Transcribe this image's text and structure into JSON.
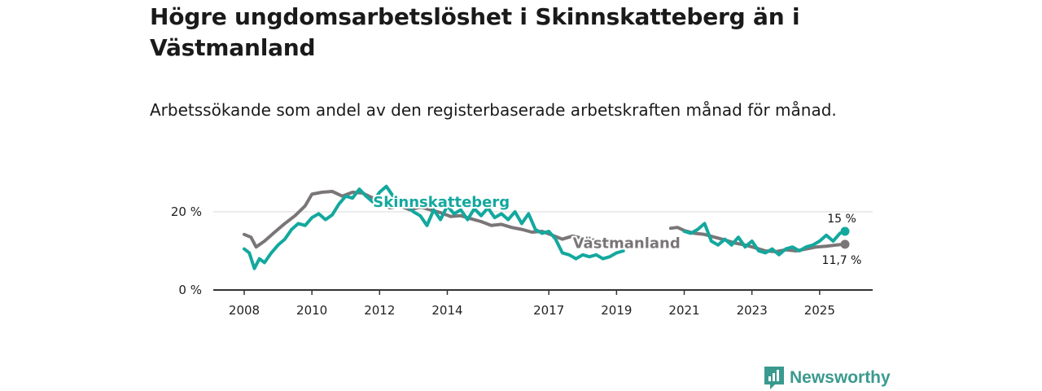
{
  "title": "Högre ungdomsarbetslöshet i Skinnskatteberg än i Västmanland",
  "subtitle": "Arbetssökande som andel av den registerbaserade arbetskraften månad för månad.",
  "brand": {
    "name": "Newsworthy"
  },
  "colors": {
    "skinnskatteberg": "#13a89e",
    "vastmanland": "#7a7678",
    "grid": "#d9d9d9",
    "axis": "#333333"
  },
  "chart_data": {
    "type": "line",
    "title": "Högre ungdomsarbetslöshet i Skinnskatteberg än i Västmanland",
    "xlabel": "",
    "ylabel": "",
    "ylim": [
      0,
      28
    ],
    "xlim": [
      2008.0,
      2025.75
    ],
    "y_ticks": [
      {
        "value": 0,
        "label": "0 %"
      },
      {
        "value": 20,
        "label": "20 %"
      }
    ],
    "x_ticks": [
      {
        "value": 2008,
        "label": "2008"
      },
      {
        "value": 2010,
        "label": "2010"
      },
      {
        "value": 2012,
        "label": "2012"
      },
      {
        "value": 2014,
        "label": "2014"
      },
      {
        "value": 2017,
        "label": "2017"
      },
      {
        "value": 2019,
        "label": "2019"
      },
      {
        "value": 2021,
        "label": "2021"
      },
      {
        "value": 2023,
        "label": "2023"
      },
      {
        "value": 2025,
        "label": "2025"
      }
    ],
    "series": [
      {
        "name": "Västmanland",
        "label": "Västmanland",
        "color": "#7a7678",
        "end_label": "11,7 %",
        "end_value": 11.7,
        "segments": [
          [
            [
              2008.0,
              14.2
            ],
            [
              2008.2,
              13.5
            ],
            [
              2008.35,
              11.0
            ],
            [
              2008.6,
              12.5
            ],
            [
              2008.9,
              14.8
            ],
            [
              2009.2,
              17.0
            ],
            [
              2009.5,
              19.0
            ],
            [
              2009.8,
              21.5
            ],
            [
              2010.0,
              24.5
            ],
            [
              2010.3,
              25.0
            ],
            [
              2010.6,
              25.2
            ],
            [
              2010.9,
              24.0
            ],
            [
              2011.2,
              25.0
            ],
            [
              2011.5,
              24.8
            ],
            [
              2011.8,
              23.5
            ],
            [
              2012.0,
              22.5
            ],
            [
              2012.3,
              21.0
            ],
            [
              2012.6,
              21.5
            ],
            [
              2012.9,
              20.5
            ],
            [
              2013.2,
              21.2
            ],
            [
              2013.5,
              20.5
            ],
            [
              2013.8,
              19.8
            ],
            [
              2014.1,
              18.8
            ],
            [
              2014.4,
              19.0
            ],
            [
              2014.7,
              18.2
            ],
            [
              2015.0,
              17.5
            ],
            [
              2015.3,
              16.5
            ],
            [
              2015.6,
              16.8
            ],
            [
              2015.9,
              16.0
            ],
            [
              2016.2,
              15.5
            ],
            [
              2016.5,
              14.8
            ],
            [
              2016.8,
              15.0
            ],
            [
              2017.1,
              14.0
            ],
            [
              2017.4,
              13.0
            ],
            [
              2017.7,
              13.8
            ],
            [
              2018.0,
              13.2
            ],
            [
              2018.3,
              12.8
            ],
            [
              2018.6,
              12.5
            ],
            [
              2018.9,
              11.8
            ],
            [
              2019.2,
              11.2
            ]
          ],
          [
            [
              2020.6,
              15.8
            ],
            [
              2020.8,
              16.0
            ],
            [
              2021.0,
              15.2
            ],
            [
              2021.3,
              14.5
            ],
            [
              2021.6,
              14.2
            ],
            [
              2021.9,
              13.5
            ],
            [
              2022.2,
              12.8
            ],
            [
              2022.5,
              12.0
            ],
            [
              2022.8,
              11.5
            ],
            [
              2023.1,
              10.8
            ],
            [
              2023.4,
              10.0
            ],
            [
              2023.7,
              9.8
            ],
            [
              2024.0,
              10.3
            ],
            [
              2024.3,
              10.0
            ],
            [
              2024.6,
              10.5
            ],
            [
              2024.9,
              11.0
            ],
            [
              2025.2,
              11.2
            ],
            [
              2025.5,
              11.5
            ],
            [
              2025.75,
              11.7
            ]
          ]
        ]
      },
      {
        "name": "Skinnskatteberg",
        "label": "Skinnskatteberg",
        "color": "#13a89e",
        "end_label": "15 %",
        "end_value": 15.0,
        "segments": [
          [
            [
              2008.0,
              10.5
            ],
            [
              2008.15,
              9.5
            ],
            [
              2008.3,
              5.5
            ],
            [
              2008.45,
              8.0
            ],
            [
              2008.6,
              7.0
            ],
            [
              2008.8,
              9.5
            ],
            [
              2009.0,
              11.5
            ],
            [
              2009.2,
              13.0
            ],
            [
              2009.4,
              15.5
            ],
            [
              2009.6,
              17.0
            ],
            [
              2009.8,
              16.5
            ],
            [
              2010.0,
              18.5
            ],
            [
              2010.2,
              19.5
            ],
            [
              2010.4,
              18.0
            ],
            [
              2010.6,
              19.2
            ],
            [
              2010.8,
              22.0
            ],
            [
              2011.0,
              24.0
            ],
            [
              2011.2,
              23.5
            ],
            [
              2011.4,
              25.8
            ],
            [
              2011.6,
              24.0
            ],
            [
              2011.8,
              22.5
            ],
            [
              2012.0,
              25.0
            ],
            [
              2012.2,
              26.5
            ],
            [
              2012.4,
              24.0
            ],
            [
              2012.6,
              22.0
            ],
            [
              2012.8,
              21.5
            ],
            [
              2013.0,
              20.0
            ],
            [
              2013.2,
              19.0
            ],
            [
              2013.4,
              16.5
            ],
            [
              2013.6,
              20.5
            ],
            [
              2013.8,
              18.0
            ],
            [
              2014.0,
              21.5
            ],
            [
              2014.2,
              19.5
            ],
            [
              2014.4,
              20.5
            ],
            [
              2014.6,
              18.0
            ],
            [
              2014.8,
              20.8
            ],
            [
              2015.0,
              19.0
            ],
            [
              2015.2,
              21.0
            ],
            [
              2015.4,
              18.5
            ],
            [
              2015.6,
              19.5
            ],
            [
              2015.8,
              18.0
            ],
            [
              2016.0,
              20.0
            ],
            [
              2016.2,
              17.0
            ],
            [
              2016.4,
              19.5
            ],
            [
              2016.6,
              15.5
            ],
            [
              2016.8,
              14.5
            ],
            [
              2017.0,
              15.0
            ],
            [
              2017.2,
              13.0
            ],
            [
              2017.4,
              9.5
            ],
            [
              2017.6,
              9.0
            ],
            [
              2017.8,
              8.0
            ],
            [
              2018.0,
              9.0
            ],
            [
              2018.2,
              8.5
            ],
            [
              2018.4,
              9.0
            ],
            [
              2018.6,
              8.0
            ],
            [
              2018.8,
              8.5
            ],
            [
              2019.0,
              9.5
            ],
            [
              2019.2,
              10.0
            ]
          ],
          [
            [
              2021.0,
              15.0
            ],
            [
              2021.2,
              14.5
            ],
            [
              2021.4,
              15.5
            ],
            [
              2021.6,
              17.0
            ],
            [
              2021.8,
              12.5
            ],
            [
              2022.0,
              11.5
            ],
            [
              2022.2,
              13.0
            ],
            [
              2022.4,
              11.5
            ],
            [
              2022.6,
              13.5
            ],
            [
              2022.8,
              11.0
            ],
            [
              2023.0,
              12.5
            ],
            [
              2023.2,
              10.0
            ],
            [
              2023.4,
              9.5
            ],
            [
              2023.6,
              10.5
            ],
            [
              2023.8,
              9.0
            ],
            [
              2024.0,
              10.5
            ],
            [
              2024.2,
              11.0
            ],
            [
              2024.4,
              10.0
            ],
            [
              2024.6,
              11.0
            ],
            [
              2024.8,
              11.5
            ],
            [
              2025.0,
              12.5
            ],
            [
              2025.2,
              14.0
            ],
            [
              2025.4,
              12.5
            ],
            [
              2025.6,
              14.5
            ],
            [
              2025.75,
              15.0
            ]
          ]
        ]
      }
    ]
  }
}
